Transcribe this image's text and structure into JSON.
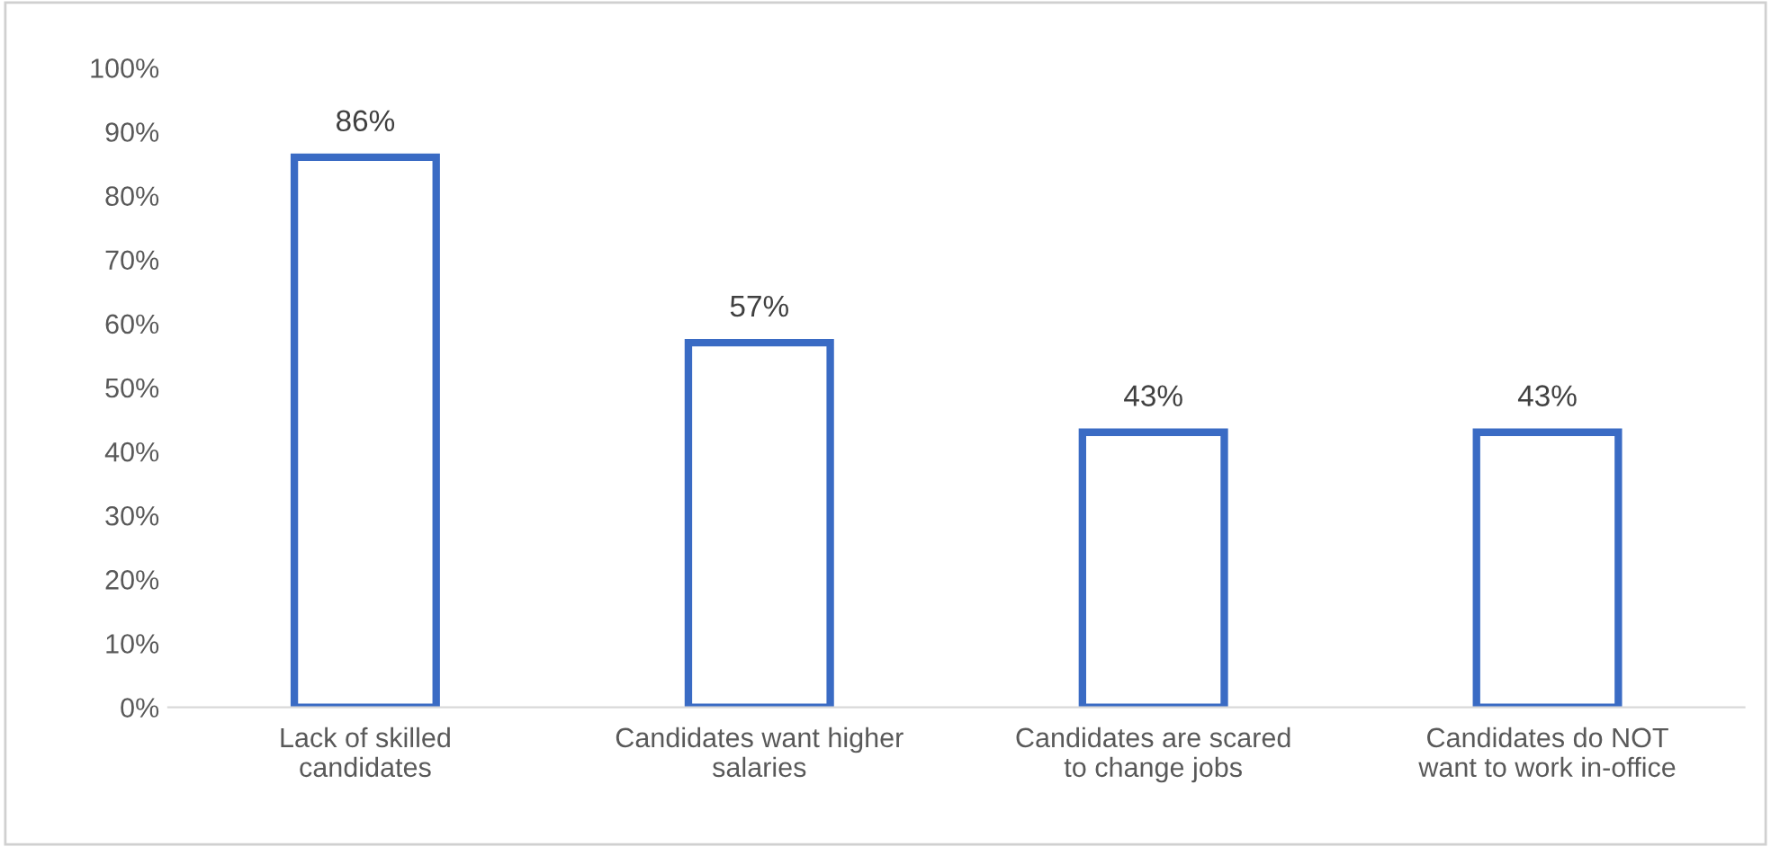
{
  "chart_data": {
    "type": "bar",
    "categories": [
      "Lack of skilled\ncandidates",
      "Candidates want higher\nsalaries",
      "Candidates are scared\nto change jobs",
      "Candidates do NOT\nwant to work in-office"
    ],
    "values": [
      86,
      57,
      43,
      43
    ],
    "value_labels": [
      "86%",
      "57%",
      "43%",
      "43%"
    ],
    "color": "#3a6bc4",
    "ylim": [
      0,
      100
    ],
    "yticks": [
      {
        "value": 0,
        "label": "0%"
      },
      {
        "value": 10,
        "label": "10%"
      },
      {
        "value": 20,
        "label": "20%"
      },
      {
        "value": 30,
        "label": "30%"
      },
      {
        "value": 40,
        "label": "40%"
      },
      {
        "value": 50,
        "label": "50%"
      },
      {
        "value": 60,
        "label": "60%"
      },
      {
        "value": 70,
        "label": "70%"
      },
      {
        "value": 80,
        "label": "80%"
      },
      {
        "value": 90,
        "label": "90%"
      },
      {
        "value": 100,
        "label": "100%"
      }
    ],
    "grid": false,
    "legend": false
  }
}
